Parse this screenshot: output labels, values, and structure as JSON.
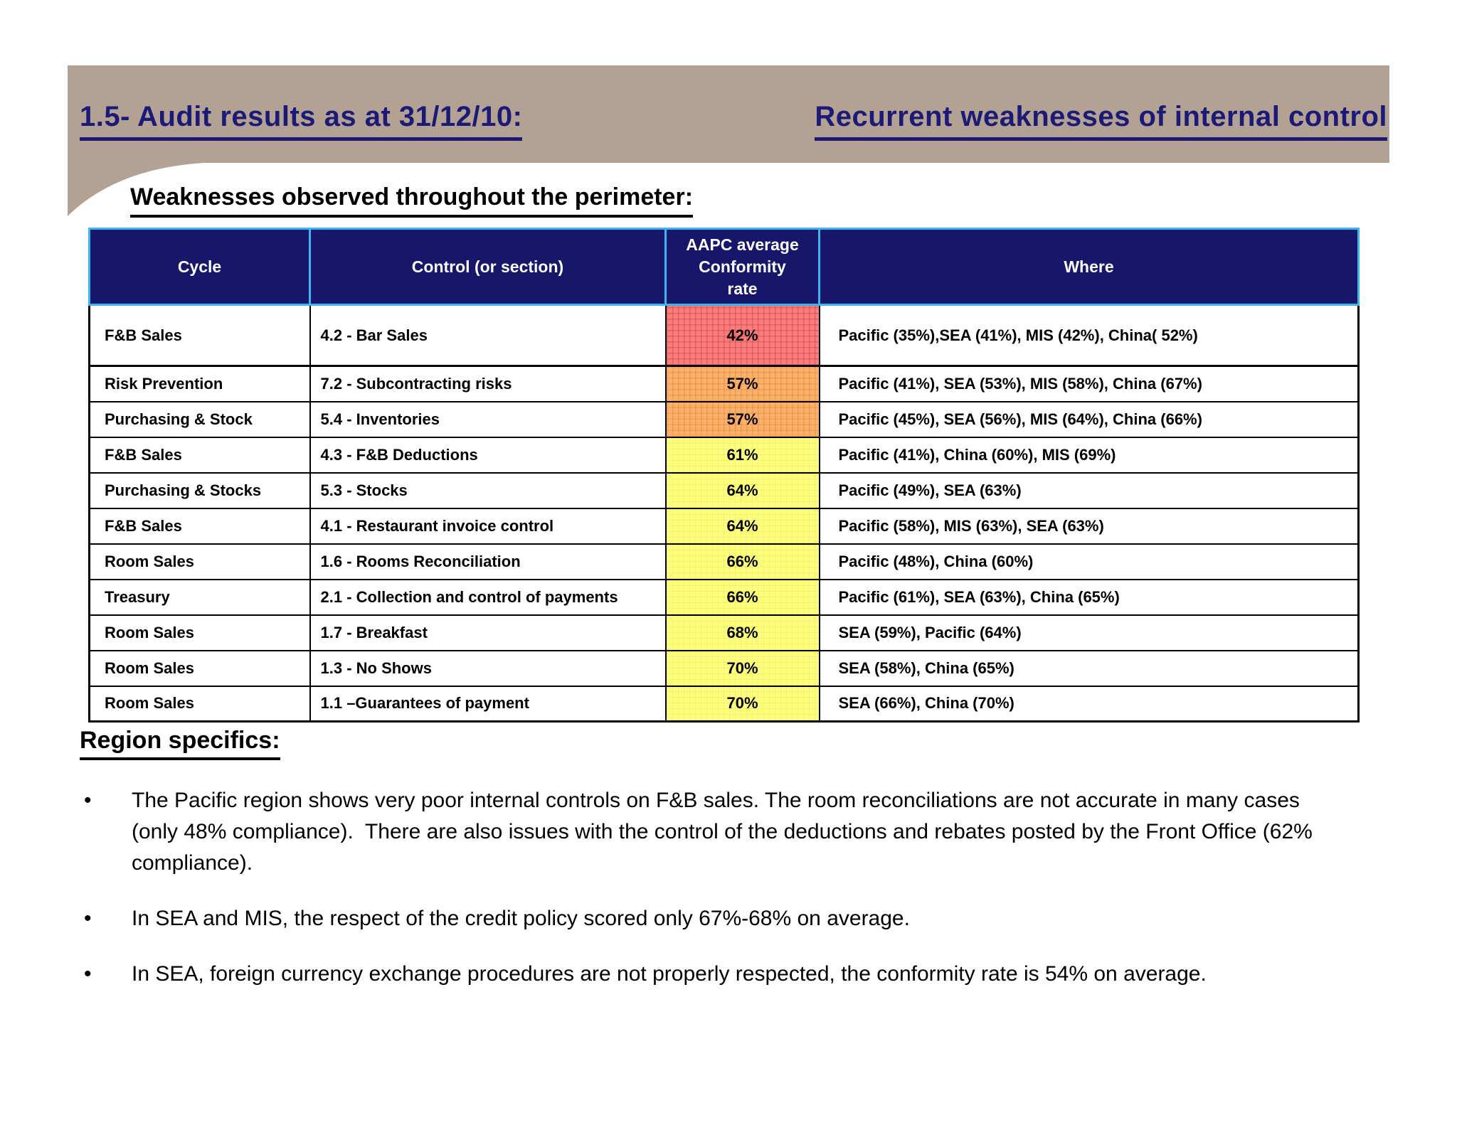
{
  "slide": {
    "title_left": "1.5- Audit results as at 31/12/10:",
    "title_right": "Recurrent weaknesses of internal control",
    "section_heading": "Weaknesses observed throughout the perimeter:",
    "region_heading": "Region specifics:"
  },
  "table": {
    "headers": {
      "cycle": "Cycle",
      "control": "Control (or section)",
      "rate": "AAPC average\nConformity\nrate",
      "where": "Where"
    },
    "rows": [
      {
        "cycle": "F&B Sales",
        "control": "4.2 - Bar Sales",
        "rate": "42%",
        "level": "red",
        "where": "Pacific (35%),SEA (41%), MIS (42%), China( 52%)"
      },
      {
        "cycle": "Risk Prevention",
        "control": "7.2 - Subcontracting risks",
        "rate": "57%",
        "level": "orange",
        "where": "Pacific (41%), SEA (53%), MIS (58%), China (67%)"
      },
      {
        "cycle": "Purchasing & Stock",
        "control": "5.4 - Inventories",
        "rate": "57%",
        "level": "orange",
        "where": "Pacific (45%), SEA (56%), MIS (64%), China (66%)"
      },
      {
        "cycle": "F&B Sales",
        "control": "4.3 - F&B Deductions",
        "rate": "61%",
        "level": "yellow",
        "where": "Pacific (41%), China (60%), MIS (69%)"
      },
      {
        "cycle": "Purchasing & Stocks",
        "control": "5.3 - Stocks",
        "rate": "64%",
        "level": "yellow",
        "where": "Pacific (49%), SEA (63%)"
      },
      {
        "cycle": "F&B Sales",
        "control": "4.1 - Restaurant invoice control",
        "rate": "64%",
        "level": "yellow",
        "where": "Pacific (58%), MIS (63%), SEA (63%)"
      },
      {
        "cycle": "Room Sales",
        "control": "1.6 - Rooms Reconciliation",
        "rate": "66%",
        "level": "yellow",
        "where": "Pacific (48%), China (60%)"
      },
      {
        "cycle": "Treasury",
        "control": "2.1 - Collection and control of payments",
        "rate": "66%",
        "level": "yellow",
        "where": "Pacific (61%), SEA (63%), China (65%)"
      },
      {
        "cycle": "Room Sales",
        "control": "1.7 - Breakfast",
        "rate": "68%",
        "level": "yellow",
        "where": "SEA (59%), Pacific (64%)"
      },
      {
        "cycle": "Room Sales",
        "control": "1.3 - No Shows",
        "rate": "70%",
        "level": "yellow",
        "where": "SEA (58%), China (65%)"
      },
      {
        "cycle": "Room Sales",
        "control": "1.1 –Guarantees of payment",
        "rate": "70%",
        "level": "yellow",
        "where": "SEA (66%), China (70%)"
      }
    ]
  },
  "bullets": [
    "The Pacific region shows very poor internal controls on F&B sales. The room reconciliations are not accurate in many cases (only 48% compliance).  There are also issues with the control of the deductions and rebates posted by the Front Office (62% compliance).",
    "In SEA and MIS, the respect of the credit policy scored only 67%-68% on average.",
    "In SEA, foreign currency exchange procedures are not properly respected, the conformity rate is 54% on average."
  ],
  "bullet_marker": "•",
  "colors": {
    "red": "#f97d7b",
    "orange": "#fbb06c",
    "yellow": "#ffff7e",
    "header_bg": "#17166b",
    "header_border": "#3ab5ee",
    "title": "#1b1b77",
    "band": "#b3a294"
  }
}
